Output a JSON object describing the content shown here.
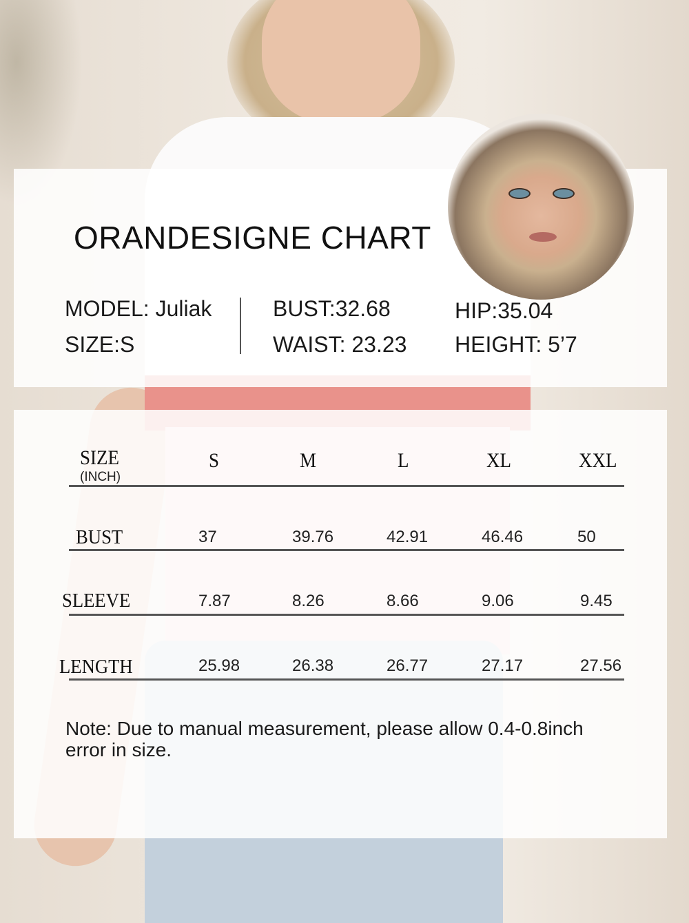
{
  "chart": {
    "title": "ORANDESIGNE CHART",
    "model": {
      "model_label": "MODEL: Juliak",
      "size_label": "SIZE:S",
      "bust_label": "BUST:32.68",
      "waist_label": "WAIST: 23.23",
      "hip_label": "HIP:35.04",
      "height_label": "HEIGHT: 5’7"
    }
  },
  "table": {
    "header_label": "SIZE",
    "unit_label": "(INCH)",
    "sizes": [
      "S",
      "M",
      "L",
      "XL",
      "XXL"
    ],
    "rows": [
      {
        "label": "BUST",
        "values": [
          "37",
          "39.76",
          "42.91",
          "46.46",
          "50"
        ]
      },
      {
        "label": "SLEEVE",
        "values": [
          "7.87",
          "8.26",
          "8.66",
          "9.06",
          "9.45"
        ]
      },
      {
        "label": "LENGTH",
        "values": [
          "25.98",
          "26.38",
          "26.77",
          "27.17",
          "27.56"
        ]
      }
    ]
  },
  "note": "Note:  Due to manual measurement, please allow 0.4-0.8inch  error in size."
}
